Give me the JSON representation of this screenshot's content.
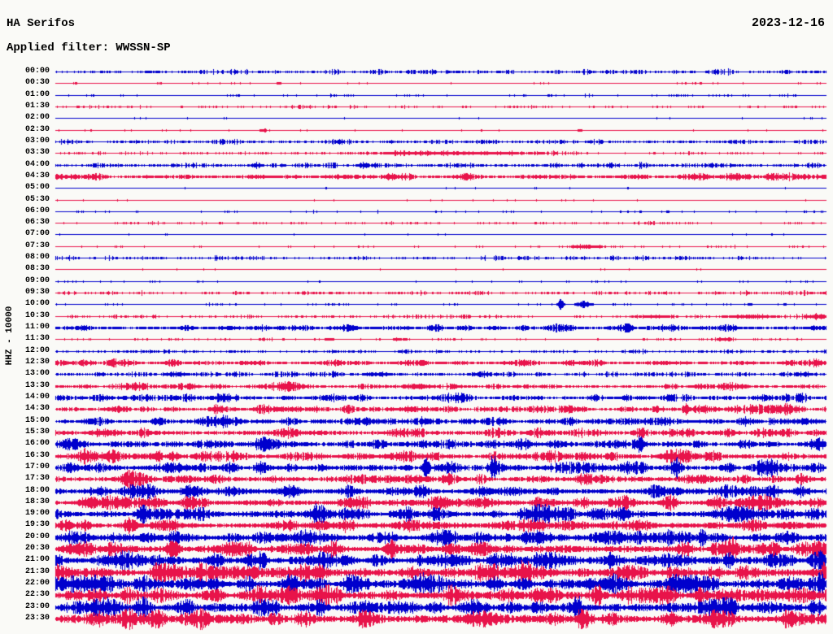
{
  "header": {
    "station": "HA Serifos",
    "date": "2023-12-16",
    "filter": "Applied filter: WWSSN-SP"
  },
  "chart_data": {
    "type": "line",
    "subtype": "helicorder-dayplot",
    "title": "HA Serifos",
    "date": "2023-12-16",
    "filter": "WWSSN-SP",
    "ylabel": "HHZ - 10000",
    "row_interval_minutes": 30,
    "first_row_time": "00:00",
    "last_row_time": "23:30",
    "trace_colors": {
      "blue": "#0000CD",
      "red": "#E8134A"
    },
    "background_color": "#FAFAF7",
    "text_color": "#000000",
    "rows": [
      {
        "time": "00:00",
        "color": "blue",
        "amp": 0.9,
        "density": 0.55,
        "events": []
      },
      {
        "time": "00:30",
        "color": "red",
        "amp": 0.35,
        "density": 0.18,
        "events": [
          [
            0.29,
            6,
            1.2
          ]
        ]
      },
      {
        "time": "01:00",
        "color": "blue",
        "amp": 0.5,
        "density": 0.22,
        "events": []
      },
      {
        "time": "01:30",
        "color": "red",
        "amp": 0.55,
        "density": 0.3,
        "events": []
      },
      {
        "time": "02:00",
        "color": "blue",
        "amp": 0.3,
        "density": 0.08,
        "events": []
      },
      {
        "time": "02:30",
        "color": "red",
        "amp": 0.35,
        "density": 0.12,
        "events": [
          [
            0.27,
            8,
            1.1
          ],
          [
            0.68,
            5,
            1.0
          ]
        ]
      },
      {
        "time": "03:00",
        "color": "blue",
        "amp": 0.9,
        "density": 0.6,
        "events": []
      },
      {
        "time": "03:30",
        "color": "red",
        "amp": 0.55,
        "density": 0.3,
        "events": [
          [
            0.51,
            190,
            1.3
          ]
        ]
      },
      {
        "time": "04:00",
        "color": "blue",
        "amp": 1.0,
        "density": 0.65,
        "events": [
          [
            0.26,
            10,
            2.2
          ],
          [
            0.4,
            10,
            1.8
          ]
        ]
      },
      {
        "time": "04:30",
        "color": "red",
        "amp": 1.15,
        "density": 0.95,
        "events": []
      },
      {
        "time": "05:00",
        "color": "blue",
        "amp": 0.3,
        "density": 0.07,
        "events": [
          [
            0.35,
            3,
            1.0
          ]
        ]
      },
      {
        "time": "05:30",
        "color": "red",
        "amp": 0.35,
        "density": 0.1,
        "events": []
      },
      {
        "time": "06:00",
        "color": "blue",
        "amp": 0.45,
        "density": 0.18,
        "events": []
      },
      {
        "time": "06:30",
        "color": "red",
        "amp": 0.55,
        "density": 0.3,
        "events": []
      },
      {
        "time": "07:00",
        "color": "blue",
        "amp": 0.3,
        "density": 0.08,
        "events": []
      },
      {
        "time": "07:30",
        "color": "red",
        "amp": 0.45,
        "density": 0.15,
        "events": [
          [
            0.69,
            36,
            1.6
          ]
        ]
      },
      {
        "time": "08:00",
        "color": "blue",
        "amp": 0.7,
        "density": 0.45,
        "events": []
      },
      {
        "time": "08:30",
        "color": "red",
        "amp": 0.35,
        "density": 0.1,
        "events": []
      },
      {
        "time": "09:00",
        "color": "blue",
        "amp": 0.4,
        "density": 0.12,
        "events": []
      },
      {
        "time": "09:30",
        "color": "red",
        "amp": 0.7,
        "density": 0.5,
        "events": []
      },
      {
        "time": "10:00",
        "color": "blue",
        "amp": 0.45,
        "density": 0.2,
        "events": [
          [
            0.655,
            7,
            4.2
          ],
          [
            0.685,
            16,
            2.8
          ],
          [
            0.9,
            4,
            1.3
          ]
        ]
      },
      {
        "time": "10:30",
        "color": "red",
        "amp": 0.6,
        "density": 0.35,
        "events": [
          [
            0.78,
            40,
            1.1
          ],
          [
            0.9,
            56,
            1.5
          ],
          [
            0.985,
            22,
            1.4
          ]
        ]
      },
      {
        "time": "11:00",
        "color": "blue",
        "amp": 1.3,
        "density": 0.95,
        "events": []
      },
      {
        "time": "11:30",
        "color": "red",
        "amp": 0.55,
        "density": 0.3,
        "events": [
          [
            0.355,
            10,
            1.3
          ],
          [
            0.445,
            8,
            1.3
          ],
          [
            0.87,
            16,
            1.6
          ]
        ]
      },
      {
        "time": "12:00",
        "color": "blue",
        "amp": 0.75,
        "density": 0.5,
        "events": []
      },
      {
        "time": "12:30",
        "color": "red",
        "amp": 1.2,
        "density": 0.95,
        "events": []
      },
      {
        "time": "13:00",
        "color": "blue",
        "amp": 0.9,
        "density": 0.6,
        "events": [
          [
            0.16,
            30,
            1.4
          ],
          [
            0.42,
            30,
            1.4
          ],
          [
            0.55,
            22,
            1.3
          ],
          [
            0.97,
            22,
            1.5
          ]
        ]
      },
      {
        "time": "13:30",
        "color": "red",
        "amp": 1.2,
        "density": 0.8,
        "events": [
          [
            0.1,
            22,
            1.4
          ],
          [
            0.3,
            40,
            1.3
          ],
          [
            0.47,
            30,
            1.4
          ],
          [
            0.88,
            30,
            1.6
          ]
        ]
      },
      {
        "time": "14:00",
        "color": "blue",
        "amp": 1.4,
        "density": 0.85,
        "events": [
          [
            0.22,
            22,
            1.6
          ],
          [
            0.52,
            20,
            1.4
          ],
          [
            0.92,
            18,
            1.5
          ]
        ]
      },
      {
        "time": "14:30",
        "color": "red",
        "amp": 1.5,
        "density": 0.85,
        "events": [
          [
            0.08,
            22,
            1.8
          ],
          [
            0.3,
            40,
            1.6
          ],
          [
            0.46,
            30,
            1.6
          ],
          [
            0.818,
            7,
            4.0
          ],
          [
            0.84,
            30,
            1.6
          ],
          [
            0.95,
            30,
            2.2
          ]
        ]
      },
      {
        "time": "15:00",
        "color": "blue",
        "amp": 1.6,
        "density": 0.9,
        "events": [
          [
            0.21,
            26,
            1.8
          ],
          [
            0.4,
            30,
            1.8
          ],
          [
            0.97,
            30,
            2.0
          ]
        ]
      },
      {
        "time": "15:30",
        "color": "red",
        "amp": 1.8,
        "density": 0.9,
        "events": [
          [
            0.07,
            26,
            2.0
          ],
          [
            0.3,
            30,
            1.8
          ],
          [
            0.45,
            26,
            1.8
          ],
          [
            0.8,
            7,
            4.0
          ],
          [
            0.93,
            30,
            2.0
          ]
        ]
      },
      {
        "time": "16:00",
        "color": "blue",
        "amp": 1.9,
        "density": 0.95,
        "events": [
          [
            0.02,
            18,
            2.0
          ],
          [
            0.27,
            26,
            2.0
          ],
          [
            0.6,
            30,
            1.8
          ],
          [
            0.757,
            8,
            5.0
          ],
          [
            0.99,
            18,
            2.2
          ]
        ]
      },
      {
        "time": "16:30",
        "color": "red",
        "amp": 2.0,
        "density": 0.95,
        "events": [
          [
            0.05,
            30,
            2.2
          ],
          [
            0.154,
            10,
            3.5
          ],
          [
            0.44,
            26,
            2.2
          ],
          [
            0.8,
            26,
            2.0
          ]
        ]
      },
      {
        "time": "17:00",
        "color": "blue",
        "amp": 2.1,
        "density": 0.95,
        "events": [
          [
            0.155,
            26,
            3.6
          ],
          [
            0.48,
            7,
            8.5
          ],
          [
            0.505,
            22,
            3.2
          ],
          [
            0.568,
            7,
            7.0
          ],
          [
            0.806,
            8,
            6.0
          ],
          [
            0.93,
            26,
            2.4
          ]
        ]
      },
      {
        "time": "17:30",
        "color": "red",
        "amp": 2.1,
        "density": 0.95,
        "events": [
          [
            0.1,
            30,
            2.6
          ],
          [
            0.46,
            26,
            2.2
          ],
          [
            0.83,
            26,
            2.2
          ]
        ]
      },
      {
        "time": "18:00",
        "color": "blue",
        "amp": 2.2,
        "density": 1,
        "events": [
          [
            0.118,
            14,
            5.0
          ],
          [
            0.31,
            20,
            2.6
          ],
          [
            0.8,
            30,
            2.4
          ]
        ]
      },
      {
        "time": "18:30",
        "color": "red",
        "amp": 2.3,
        "density": 1,
        "events": [
          [
            0.058,
            26,
            4.2
          ],
          [
            0.5,
            24,
            2.4
          ],
          [
            0.92,
            30,
            2.8
          ]
        ]
      },
      {
        "time": "19:00",
        "color": "blue",
        "amp": 2.3,
        "density": 1,
        "events": [
          [
            0.113,
            12,
            6.5
          ],
          [
            0.335,
            16,
            4.2
          ],
          [
            0.63,
            24,
            2.6
          ],
          [
            0.737,
            14,
            5.0
          ],
          [
            0.872,
            24,
            4.0
          ],
          [
            0.98,
            20,
            2.8
          ]
        ]
      },
      {
        "time": "19:30",
        "color": "red",
        "amp": 2.5,
        "density": 1,
        "events": [
          [
            0.012,
            18,
            3.2
          ],
          [
            0.35,
            26,
            2.6
          ],
          [
            0.62,
            24,
            2.6
          ],
          [
            0.9,
            24,
            2.6
          ]
        ]
      },
      {
        "time": "20:00",
        "color": "blue",
        "amp": 2.7,
        "density": 1,
        "events": [
          [
            0.12,
            26,
            2.8
          ],
          [
            0.61,
            9,
            6.5
          ],
          [
            0.838,
            9,
            6.5
          ],
          [
            0.95,
            26,
            3.0
          ]
        ]
      },
      {
        "time": "20:30",
        "color": "red",
        "amp": 2.9,
        "density": 1,
        "events": [
          [
            0.02,
            22,
            3.0
          ],
          [
            0.55,
            30,
            2.8
          ],
          [
            0.877,
            9,
            6.5
          ],
          [
            0.988,
            7,
            6.0
          ]
        ]
      },
      {
        "time": "21:00",
        "color": "blue",
        "amp": 3.1,
        "density": 1,
        "events": [
          [
            0.1,
            26,
            3.2
          ],
          [
            0.5,
            30,
            3.0
          ],
          [
            0.874,
            9,
            6.0
          ],
          [
            0.993,
            6,
            5.0
          ]
        ]
      },
      {
        "time": "21:30",
        "color": "red",
        "amp": 3.2,
        "density": 1,
        "events": [
          [
            0.25,
            34,
            3.2
          ],
          [
            0.6,
            30,
            3.0
          ],
          [
            0.997,
            7,
            7.0
          ]
        ]
      },
      {
        "time": "22:00",
        "color": "blue",
        "amp": 3.3,
        "density": 1,
        "events": [
          [
            0.18,
            30,
            3.2
          ],
          [
            0.7,
            30,
            3.2
          ],
          [
            0.993,
            7,
            6.0
          ]
        ]
      },
      {
        "time": "22:30",
        "color": "red",
        "amp": 3.3,
        "density": 1,
        "events": [
          [
            0.3,
            30,
            3.2
          ],
          [
            0.78,
            30,
            3.2
          ]
        ]
      },
      {
        "time": "23:00",
        "color": "blue",
        "amp": 3.4,
        "density": 1,
        "events": [
          [
            0.45,
            30,
            3.2
          ],
          [
            0.677,
            7,
            11.0
          ]
        ]
      },
      {
        "time": "23:30",
        "color": "red",
        "amp": 3.4,
        "density": 1,
        "events": [
          [
            0.12,
            30,
            3.4
          ],
          [
            0.55,
            30,
            3.2
          ]
        ]
      }
    ]
  }
}
